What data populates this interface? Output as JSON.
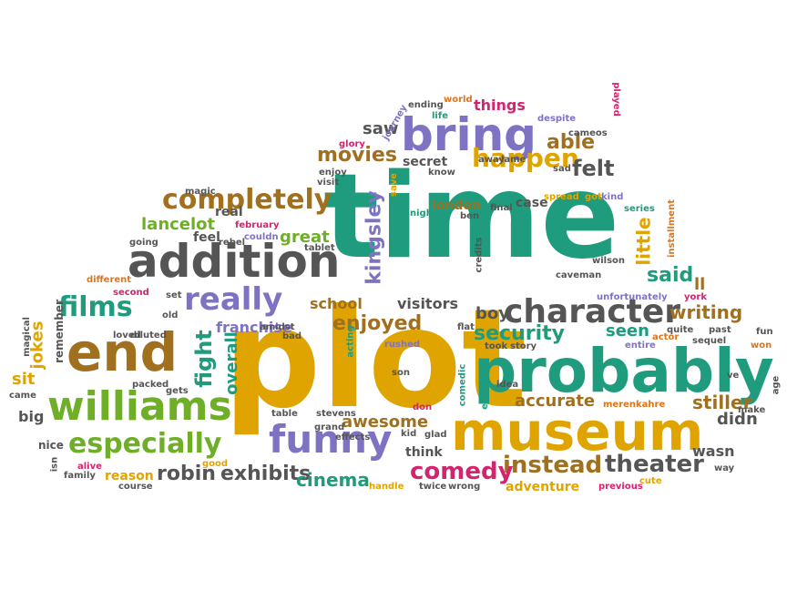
{
  "colors": {
    "teal": "#1f9b7d",
    "gold": "#e0a400",
    "brown": "#a0701e",
    "purple": "#7e73c2",
    "gray": "#555555",
    "green": "#6fae27",
    "magenta": "#d4246f",
    "orange": "#e07417",
    "blue": "#3b6fb6"
  },
  "words": [
    {
      "text": "time",
      "color": "teal"
    },
    {
      "text": "plot",
      "color": "gold"
    },
    {
      "text": "probably",
      "color": "teal"
    },
    {
      "text": "museum",
      "color": "gold"
    },
    {
      "text": "addition",
      "color": "gray"
    },
    {
      "text": "end",
      "color": "brown"
    },
    {
      "text": "bring",
      "color": "purple"
    },
    {
      "text": "williams",
      "color": "green"
    },
    {
      "text": "funny",
      "color": "purple"
    },
    {
      "text": "character",
      "color": "gray"
    },
    {
      "text": "really",
      "color": "purple"
    },
    {
      "text": "completely",
      "color": "brown"
    },
    {
      "text": "especially",
      "color": "green"
    },
    {
      "text": "films",
      "color": "teal"
    },
    {
      "text": "happen",
      "color": "gold"
    },
    {
      "text": "theater",
      "color": "gray"
    },
    {
      "text": "instead",
      "color": "brown"
    },
    {
      "text": "comedy",
      "color": "magenta"
    },
    {
      "text": "robin",
      "color": "gray"
    },
    {
      "text": "exhibits",
      "color": "gray"
    },
    {
      "text": "kingsley",
      "color": "purple"
    },
    {
      "text": "security",
      "color": "teal"
    },
    {
      "text": "enjoyed",
      "color": "brown"
    },
    {
      "text": "movies",
      "color": "brown"
    },
    {
      "text": "felt",
      "color": "gray"
    },
    {
      "text": "able",
      "color": "brown"
    },
    {
      "text": "said",
      "color": "teal"
    },
    {
      "text": "writing",
      "color": "brown"
    },
    {
      "text": "stiller",
      "color": "brown"
    },
    {
      "text": "fight",
      "color": "teal"
    },
    {
      "text": "overall",
      "color": "teal"
    },
    {
      "text": "cinema",
      "color": "teal"
    },
    {
      "text": "accurate",
      "color": "brown"
    },
    {
      "text": "seen",
      "color": "teal"
    },
    {
      "text": "awesome",
      "color": "brown"
    },
    {
      "text": "little",
      "color": "gold"
    },
    {
      "text": "lancelot",
      "color": "green"
    },
    {
      "text": "great",
      "color": "green"
    },
    {
      "text": "franchise",
      "color": "purple"
    },
    {
      "text": "school",
      "color": "brown"
    },
    {
      "text": "visitors",
      "color": "gray"
    },
    {
      "text": "boy",
      "color": "gray"
    },
    {
      "text": "didn",
      "color": "gray"
    },
    {
      "text": "wasn",
      "color": "gray"
    },
    {
      "text": "adventure",
      "color": "gold"
    },
    {
      "text": "jokes",
      "color": "gold"
    },
    {
      "text": "sit",
      "color": "gold"
    },
    {
      "text": "big",
      "color": "gray"
    },
    {
      "text": "reason",
      "color": "gold"
    },
    {
      "text": "saw",
      "color": "gray"
    },
    {
      "text": "things",
      "color": "magenta"
    },
    {
      "text": "secret",
      "color": "gray"
    },
    {
      "text": "london",
      "color": "brown"
    },
    {
      "text": "case",
      "color": "gray"
    },
    {
      "text": "feel",
      "color": "gray"
    },
    {
      "text": "real",
      "color": "gray"
    },
    {
      "text": "think",
      "color": "gray"
    },
    {
      "text": "ll",
      "color": "brown"
    },
    {
      "text": "remember",
      "color": "gray"
    },
    {
      "text": "nice",
      "color": "gray"
    },
    {
      "text": "packed",
      "color": "gray"
    },
    {
      "text": "magic",
      "color": "gray"
    },
    {
      "text": "different",
      "color": "orange"
    },
    {
      "text": "second",
      "color": "magenta"
    },
    {
      "text": "going",
      "color": "gray"
    },
    {
      "text": "rebel",
      "color": "gray"
    },
    {
      "text": "february",
      "color": "magenta"
    },
    {
      "text": "couldn",
      "color": "purple"
    },
    {
      "text": "tablet",
      "color": "gray"
    },
    {
      "text": "world",
      "color": "orange"
    },
    {
      "text": "ending",
      "color": "gray"
    },
    {
      "text": "life",
      "color": "teal"
    },
    {
      "text": "despite",
      "color": "purple"
    },
    {
      "text": "played",
      "color": "magenta"
    },
    {
      "text": "cameos",
      "color": "gray"
    },
    {
      "text": "glory",
      "color": "magenta"
    },
    {
      "text": "journey",
      "color": "purple"
    },
    {
      "text": "enjoy",
      "color": "gray"
    },
    {
      "text": "visit",
      "color": "gray"
    },
    {
      "text": "save",
      "color": "gold"
    },
    {
      "text": "know",
      "color": "gray"
    },
    {
      "text": "away",
      "color": "gray"
    },
    {
      "text": "lame",
      "color": "gray"
    },
    {
      "text": "sad",
      "color": "gray"
    },
    {
      "text": "spread",
      "color": "gold"
    },
    {
      "text": "got",
      "color": "gold"
    },
    {
      "text": "kind",
      "color": "purple"
    },
    {
      "text": "night",
      "color": "teal"
    },
    {
      "text": "ben",
      "color": "gray"
    },
    {
      "text": "final",
      "color": "gray"
    },
    {
      "text": "series",
      "color": "teal"
    },
    {
      "text": "installment",
      "color": "orange"
    },
    {
      "text": "wilson",
      "color": "gray"
    },
    {
      "text": "credits",
      "color": "gray"
    },
    {
      "text": "caveman",
      "color": "gray"
    },
    {
      "text": "unfortunately",
      "color": "purple"
    },
    {
      "text": "york",
      "color": "magenta"
    },
    {
      "text": "sequel",
      "color": "gray"
    },
    {
      "text": "past",
      "color": "gray"
    },
    {
      "text": "quite",
      "color": "gray"
    },
    {
      "text": "actor",
      "color": "orange"
    },
    {
      "text": "entire",
      "color": "purple"
    },
    {
      "text": "ve",
      "color": "gray"
    },
    {
      "text": "fun",
      "color": "gray"
    },
    {
      "text": "won",
      "color": "orange"
    },
    {
      "text": "age",
      "color": "gray"
    },
    {
      "text": "make",
      "color": "gray"
    },
    {
      "text": "way",
      "color": "gray"
    },
    {
      "text": "cute",
      "color": "gold"
    },
    {
      "text": "previous",
      "color": "magenta"
    },
    {
      "text": "merenkahre",
      "color": "orange"
    },
    {
      "text": "flat",
      "color": "gray"
    },
    {
      "text": "took",
      "color": "gray"
    },
    {
      "text": "story",
      "color": "gray"
    },
    {
      "text": "idea",
      "color": "gray"
    },
    {
      "text": "egyptian",
      "color": "teal"
    },
    {
      "text": "comedic",
      "color": "teal"
    },
    {
      "text": "glad",
      "color": "gray"
    },
    {
      "text": "kid",
      "color": "gray"
    },
    {
      "text": "twice",
      "color": "gray"
    },
    {
      "text": "wrong",
      "color": "gray"
    },
    {
      "text": "handle",
      "color": "gold"
    },
    {
      "text": "don",
      "color": "magenta"
    },
    {
      "text": "son",
      "color": "gray"
    },
    {
      "text": "rushed",
      "color": "purple"
    },
    {
      "text": "acting",
      "color": "teal"
    },
    {
      "text": "bad",
      "color": "gray"
    },
    {
      "text": "amidst",
      "color": "gray"
    },
    {
      "text": "stevens",
      "color": "gray"
    },
    {
      "text": "effects",
      "color": "gray"
    },
    {
      "text": "grand",
      "color": "gray"
    },
    {
      "text": "table",
      "color": "gray"
    },
    {
      "text": "gets",
      "color": "gray"
    },
    {
      "text": "good",
      "color": "gold"
    },
    {
      "text": "course",
      "color": "gray"
    },
    {
      "text": "alive",
      "color": "magenta"
    },
    {
      "text": "family",
      "color": "gray"
    },
    {
      "text": "isn",
      "color": "gray"
    },
    {
      "text": "came",
      "color": "gray"
    },
    {
      "text": "magical",
      "color": "gray"
    },
    {
      "text": "loved",
      "color": "gray"
    },
    {
      "text": "diluted",
      "color": "gray"
    },
    {
      "text": "old",
      "color": "gray"
    },
    {
      "text": "set",
      "color": "gray"
    }
  ]
}
